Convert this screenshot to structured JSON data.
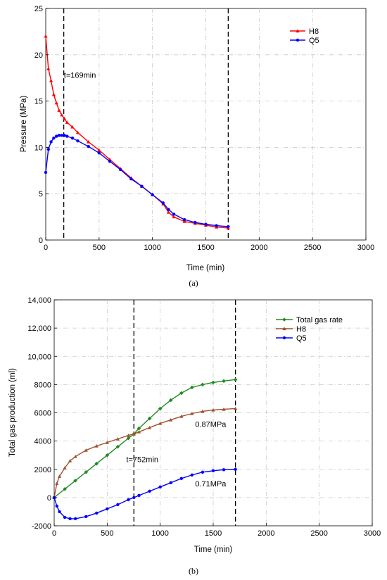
{
  "chart_data": [
    {
      "type": "line",
      "caption": "(a)",
      "xlabel": "Time (min)",
      "ylabel": "Pressure (MPa)",
      "xlim": [
        0,
        3000
      ],
      "ylim": [
        0,
        25
      ],
      "xticks": [
        0,
        500,
        1000,
        1500,
        2000,
        2500,
        3000
      ],
      "yticks": [
        0,
        5,
        10,
        15,
        20,
        25
      ],
      "grid": true,
      "legend_position": "top-right",
      "vlines": [
        169,
        1710
      ],
      "annotations": [
        {
          "text": "t=169min",
          "x": 170,
          "y": 17.5
        }
      ],
      "series": [
        {
          "name": "H8",
          "color": "#ff0000",
          "marker": "triangle",
          "x": [
            0,
            25,
            50,
            75,
            100,
            125,
            150,
            175,
            200,
            250,
            300,
            400,
            500,
            600,
            700,
            800,
            900,
            1000,
            1100,
            1150,
            1200,
            1300,
            1400,
            1500,
            1600,
            1710
          ],
          "y": [
            22.0,
            18.5,
            17.2,
            15.7,
            14.8,
            14.0,
            13.5,
            13.1,
            12.7,
            12.2,
            11.6,
            10.6,
            9.7,
            8.7,
            7.7,
            6.7,
            5.8,
            4.9,
            3.9,
            3.0,
            2.5,
            2.0,
            1.8,
            1.6,
            1.4,
            1.3
          ]
        },
        {
          "name": "Q5",
          "color": "#0000ff",
          "marker": "circle",
          "x": [
            0,
            25,
            50,
            75,
            100,
            125,
            150,
            175,
            200,
            250,
            300,
            400,
            500,
            600,
            700,
            800,
            900,
            1000,
            1100,
            1150,
            1200,
            1300,
            1400,
            1500,
            1600,
            1710
          ],
          "y": [
            7.3,
            9.8,
            10.6,
            11.0,
            11.2,
            11.3,
            11.3,
            11.3,
            11.2,
            11.0,
            10.7,
            10.1,
            9.4,
            8.5,
            7.6,
            6.6,
            5.8,
            4.9,
            4.0,
            3.3,
            2.8,
            2.2,
            1.9,
            1.7,
            1.55,
            1.45
          ]
        }
      ]
    },
    {
      "type": "line",
      "caption": "(b)",
      "xlabel": "Time (min)",
      "ylabel": "Total gas production (ml)",
      "xlim": [
        0,
        3000
      ],
      "ylim": [
        -2000,
        14000
      ],
      "xticks": [
        0,
        500,
        1000,
        1500,
        2000,
        2500,
        3000
      ],
      "yticks": [
        -2000,
        0,
        2000,
        4000,
        6000,
        8000,
        10000,
        12000,
        14000
      ],
      "ytick_labels": [
        "-2000",
        "0",
        "2000",
        "4000",
        "6000",
        "8000",
        "10,000",
        "12,000",
        "14,000"
      ],
      "grid": true,
      "legend_position": "top-right",
      "vlines": [
        752,
        1710
      ],
      "annotations": [
        {
          "text": "t=752min",
          "x": 680,
          "y": 2500
        },
        {
          "text": "0.87MPa",
          "x": 1330,
          "y": 5000
        },
        {
          "text": "0.71MPa",
          "x": 1330,
          "y": 800
        }
      ],
      "series": [
        {
          "name": "Total gas rate",
          "color": "#228b22",
          "marker": "diamond",
          "x": [
            0,
            100,
            200,
            300,
            400,
            500,
            600,
            700,
            752,
            800,
            900,
            1000,
            1100,
            1200,
            1300,
            1400,
            1500,
            1600,
            1710
          ],
          "y": [
            0,
            600,
            1200,
            1800,
            2400,
            3000,
            3600,
            4200,
            4500,
            4900,
            5600,
            6300,
            6900,
            7400,
            7800,
            8000,
            8150,
            8250,
            8350
          ]
        },
        {
          "name": "H8",
          "color": "#a0522d",
          "marker": "triangle",
          "x": [
            0,
            25,
            50,
            100,
            150,
            200,
            300,
            400,
            500,
            600,
            700,
            752,
            800,
            900,
            1000,
            1100,
            1200,
            1300,
            1400,
            1500,
            1600,
            1710
          ],
          "y": [
            0,
            1000,
            1500,
            2100,
            2600,
            2900,
            3350,
            3650,
            3900,
            4150,
            4400,
            4500,
            4650,
            4950,
            5250,
            5500,
            5750,
            5950,
            6100,
            6200,
            6250,
            6300
          ]
        },
        {
          "name": "Q5",
          "color": "#0000ff",
          "marker": "circle",
          "x": [
            0,
            25,
            50,
            100,
            150,
            200,
            300,
            400,
            500,
            600,
            700,
            752,
            800,
            900,
            1000,
            1100,
            1200,
            1300,
            1400,
            1500,
            1600,
            1710
          ],
          "y": [
            0,
            -600,
            -1000,
            -1400,
            -1500,
            -1500,
            -1350,
            -1100,
            -800,
            -500,
            -150,
            0,
            150,
            450,
            750,
            1050,
            1350,
            1600,
            1800,
            1900,
            1970,
            2000
          ]
        }
      ]
    }
  ]
}
